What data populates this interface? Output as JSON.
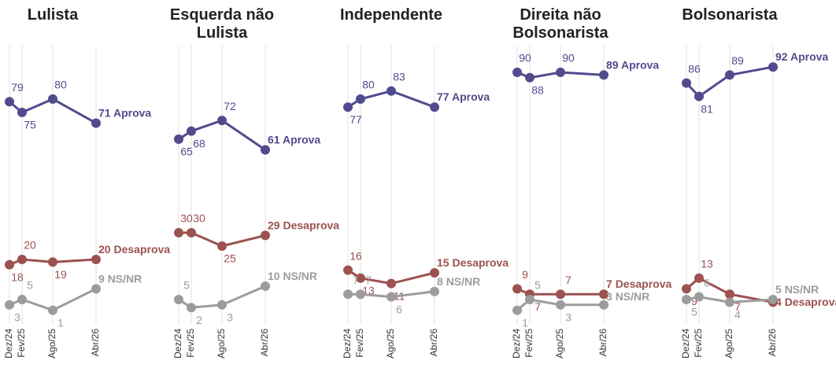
{
  "chart_data": [
    {
      "type": "line",
      "title": "Lulista",
      "categories": [
        "Dez/24",
        "Fev/25",
        "Ago/25",
        "Abr/26"
      ],
      "ylim": [
        0,
        100
      ],
      "series": [
        {
          "name": "Aprova",
          "color": "#514b8e",
          "values": [
            79,
            75,
            80,
            71
          ]
        },
        {
          "name": "Desaprova",
          "color": "#9b5250",
          "values": [
            18,
            20,
            19,
            20
          ]
        },
        {
          "name": "NS/NR",
          "color": "#9c9c9c",
          "values": [
            3,
            5,
            1,
            9
          ]
        }
      ]
    },
    {
      "type": "line",
      "title": "Esquerda não Lulista",
      "categories": [
        "Dez/24",
        "Fev/25",
        "Ago/25",
        "Abr/26"
      ],
      "ylim": [
        0,
        100
      ],
      "series": [
        {
          "name": "Aprova",
          "color": "#514b8e",
          "values": [
            65,
            68,
            72,
            61
          ]
        },
        {
          "name": "Desaprova",
          "color": "#9b5250",
          "values": [
            30,
            30,
            25,
            29
          ]
        },
        {
          "name": "NS/NR",
          "color": "#9c9c9c",
          "values": [
            5,
            2,
            3,
            10
          ]
        }
      ]
    },
    {
      "type": "line",
      "title": "Independente",
      "categories": [
        "Dez/24",
        "Fev/25",
        "Ago/25",
        "Abr/26"
      ],
      "ylim": [
        0,
        100
      ],
      "series": [
        {
          "name": "Aprova",
          "color": "#514b8e",
          "values": [
            77,
            80,
            83,
            77
          ]
        },
        {
          "name": "Desaprova",
          "color": "#9b5250",
          "values": [
            16,
            13,
            11,
            15
          ]
        },
        {
          "name": "NS/NR",
          "color": "#9c9c9c",
          "values": [
            7,
            7,
            6,
            8
          ]
        }
      ]
    },
    {
      "type": "line",
      "title": "Direita não Bolsonarista",
      "categories": [
        "Dez/24",
        "Fev/25",
        "Ago/25",
        "Abr/26"
      ],
      "ylim": [
        0,
        100
      ],
      "series": [
        {
          "name": "Aprova",
          "color": "#514b8e",
          "values": [
            90,
            88,
            90,
            89
          ]
        },
        {
          "name": "Desaprova",
          "color": "#9b5250",
          "values": [
            9,
            7,
            7,
            7
          ]
        },
        {
          "name": "NS/NR",
          "color": "#9c9c9c",
          "values": [
            1,
            5,
            3,
            3
          ]
        }
      ]
    },
    {
      "type": "line",
      "title": "Bolsonarista",
      "categories": [
        "Dez/24",
        "Fev/25",
        "Ago/25",
        "Abr/26"
      ],
      "ylim": [
        0,
        100
      ],
      "series": [
        {
          "name": "Aprova",
          "color": "#514b8e",
          "values": [
            86,
            81,
            89,
            92
          ]
        },
        {
          "name": "Desaprova",
          "color": "#9b5250",
          "values": [
            9,
            13,
            7,
            4
          ]
        },
        {
          "name": "NS/NR",
          "color": "#9c9c9c",
          "values": [
            5,
            6,
            4,
            5
          ]
        }
      ]
    }
  ]
}
